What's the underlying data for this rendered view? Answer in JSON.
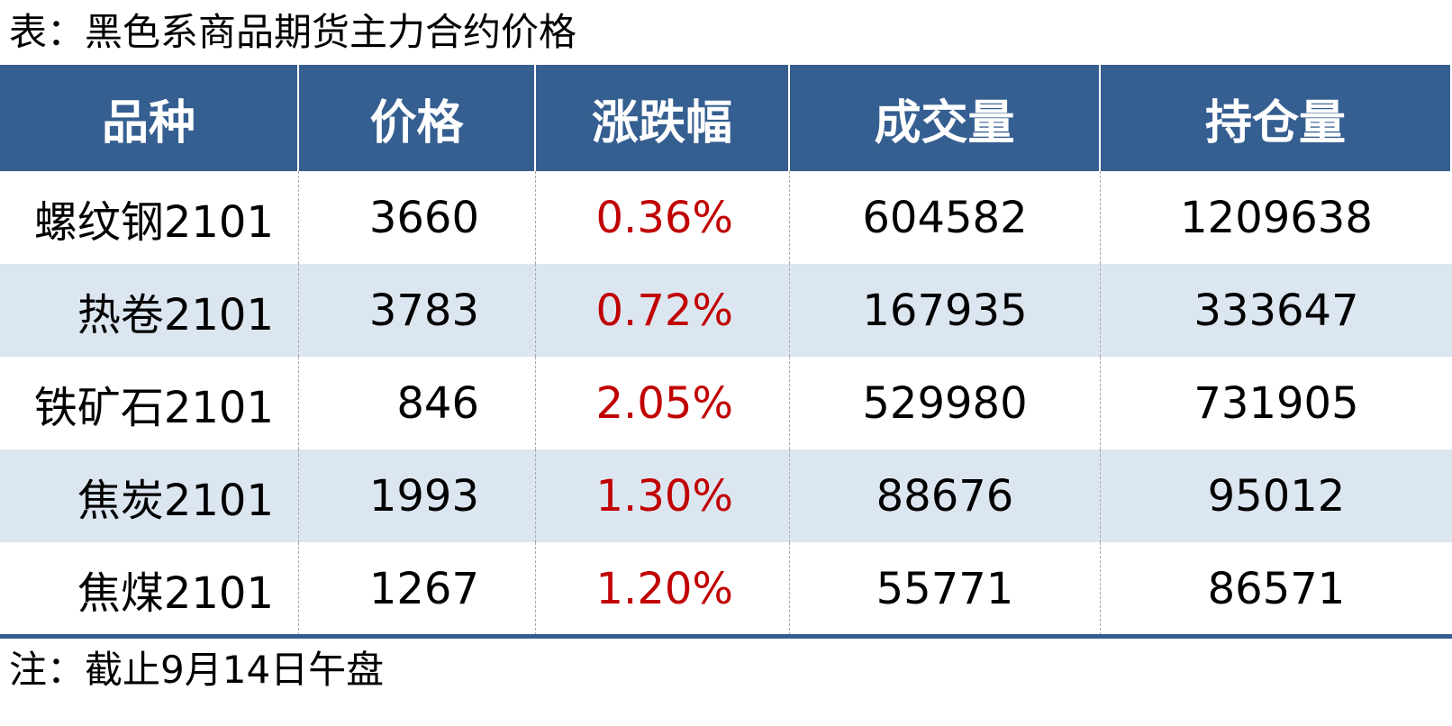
{
  "header": {
    "title": "表：黑色系商品期货主力合约价格"
  },
  "table": {
    "columns": [
      "品种",
      "价格",
      "涨跌幅",
      "成交量",
      "持仓量"
    ],
    "rows": [
      [
        "螺纹钢2101",
        "3660",
        "0.36%",
        "604582",
        "1209638"
      ],
      [
        "热卷2101",
        "3783",
        "0.72%",
        "167935",
        "333647"
      ],
      [
        "铁矿石2101",
        "846",
        "2.05%",
        "529980",
        "731905"
      ],
      [
        "焦炭2101",
        "1993",
        "1.30%",
        "88676",
        "95012"
      ],
      [
        "焦煤2101",
        "1267",
        "1.20%",
        "55771",
        "86571"
      ]
    ]
  },
  "footer": {
    "note": "注：截止9月14日午盘"
  }
}
